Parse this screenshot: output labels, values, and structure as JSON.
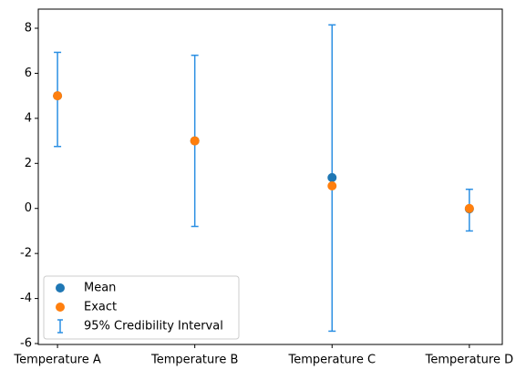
{
  "chart_data": {
    "type": "errorbar",
    "categories": [
      "Temperature A",
      "Temperature B",
      "Temperature C",
      "Temperature D"
    ],
    "series": [
      {
        "name": "Mean",
        "color": "#1f77b4",
        "values": [
          5.0,
          3.0,
          1.37,
          -0.02
        ]
      },
      {
        "name": "Exact",
        "color": "#ff7f0e",
        "values": [
          5.0,
          3.0,
          1.0,
          0.0
        ]
      },
      {
        "name": "95% Credibility Interval",
        "color": "#2b8fe3",
        "lower": [
          2.75,
          -0.8,
          -5.45,
          -1.0
        ],
        "upper": [
          6.93,
          6.8,
          8.15,
          0.85
        ]
      }
    ],
    "ylim": [
      -6.04,
      8.85
    ],
    "yticks": [
      -6,
      -4,
      -2,
      0,
      2,
      4,
      6,
      8
    ],
    "legend": "lower left"
  }
}
